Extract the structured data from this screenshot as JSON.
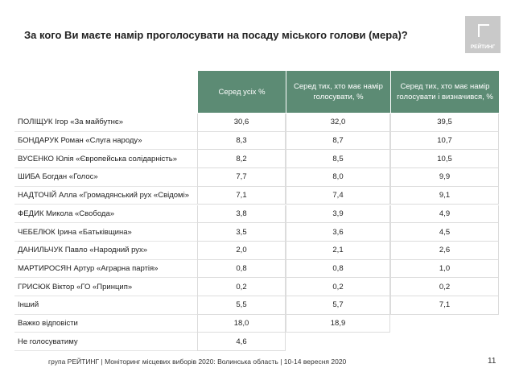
{
  "header": {
    "title": "За кого Ви маєте намір проголосувати на посаду міського голови (мера)?",
    "logo": "РЕЙТИНГ"
  },
  "table": {
    "columns": [
      "Серед усіх %",
      "Серед тих, хто має намір голосувати, %",
      "Серед тих, хто має намір голосувати і визначився, %"
    ],
    "rows": [
      [
        "ПОЛІЩУК Ігор «За майбутнє»",
        "30,6",
        "32,0",
        "39,5"
      ],
      [
        "БОНДАРУК Роман «Слуга народу»",
        "8,3",
        "8,7",
        "10,7"
      ],
      [
        "ВУСЕНКО Юлія «Європейська солідарність»",
        "8,2",
        "8,5",
        "10,5"
      ],
      [
        "ШИБА Богдан «Голос»",
        "7,7",
        "8,0",
        "9,9"
      ],
      [
        "НАДТОЧІЙ Алла «Громадянський рух «Свідомі»",
        "7,1",
        "7,4",
        "9,1"
      ],
      [
        "ФЕДИК Микола «Свобода»",
        "3,8",
        "3,9",
        "4,9"
      ],
      [
        "ЧЕБЕЛЮК Ірина «Батьківщина»",
        "3,5",
        "3,6",
        "4,5"
      ],
      [
        "ДАНИЛЬЧУК Павло «Народний рух»",
        "2,0",
        "2,1",
        "2,6"
      ],
      [
        "МАРТИРОСЯН Артур «Аграрна партія»",
        "0,8",
        "0,8",
        "1,0"
      ],
      [
        "ГРИСЮК Віктор «ГО «Принцип»",
        "0,2",
        "0,2",
        "0,2"
      ],
      [
        "Інший",
        "5,5",
        "5,7",
        "7,1"
      ],
      [
        "Важко відповісти",
        "18,0",
        "18,9"
      ],
      [
        "Не голосуватиму",
        "4,6"
      ]
    ]
  },
  "footer": {
    "text": "група РЕЙТИНГ  | Моніторинг місцевих виборів 2020: Волинська область | 10-14 вересня 2020",
    "page": "11"
  }
}
